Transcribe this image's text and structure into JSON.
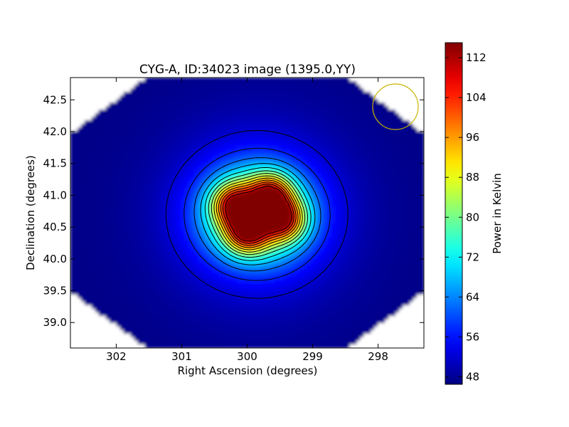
{
  "chart_data": {
    "type": "heatmap",
    "title": "CYG-A, ID:34023 image (1395.0,YY)",
    "xlabel": "Right Ascension (degrees)",
    "ylabel": "Declination (degrees)",
    "xlim": [
      302.7,
      297.3
    ],
    "ylim": [
      38.6,
      42.85
    ],
    "x_ticks": [
      302,
      301,
      300,
      299,
      298
    ],
    "y_ticks": [
      39.0,
      39.5,
      40.0,
      40.5,
      41.0,
      41.5,
      42.0,
      42.5
    ],
    "colorbar": {
      "label": "Power in Kelvin",
      "range": [
        46.5,
        115
      ],
      "ticks": [
        48,
        56,
        64,
        72,
        80,
        88,
        96,
        104,
        112
      ],
      "colormap": "jet"
    },
    "background_level": 47,
    "sources": [
      {
        "ra": 299.65,
        "dec": 41.0,
        "peak": 115
      },
      {
        "ra": 300.2,
        "dec": 40.85,
        "peak": 112
      },
      {
        "ra": 299.45,
        "dec": 40.62,
        "peak": 112
      },
      {
        "ra": 300.0,
        "dec": 40.42,
        "peak": 113
      }
    ],
    "beam_circle": {
      "ra": 297.55,
      "dec": 42.38,
      "color": "#c8b400"
    }
  }
}
